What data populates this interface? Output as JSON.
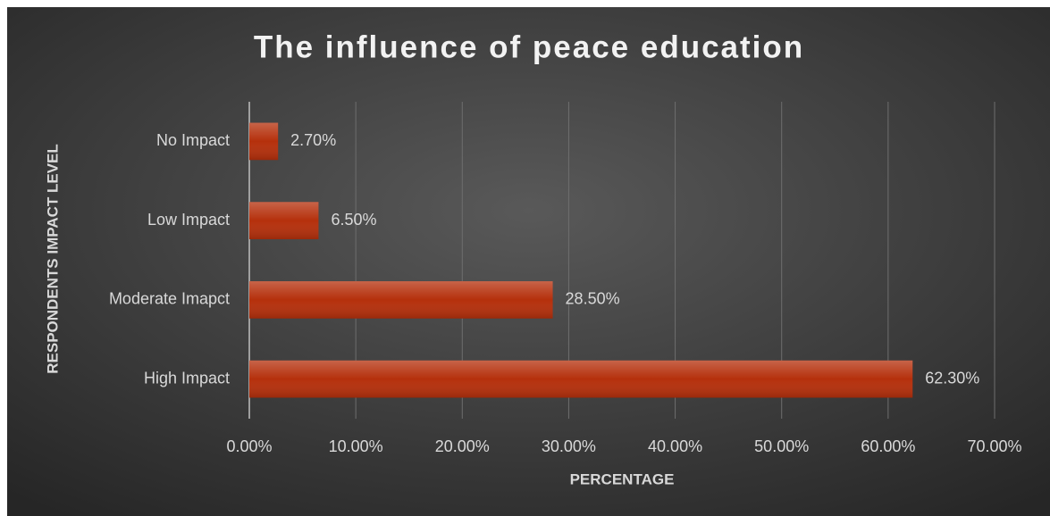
{
  "chart_data": {
    "type": "bar",
    "orientation": "horizontal",
    "title": "The influence of peace education",
    "x_label": "PERCENTAGE",
    "y_label": "RESPONDENTS IMPACT LEVEL",
    "categories": [
      "No Impact",
      "Low Impact",
      "Moderate Imapct",
      "High Impact"
    ],
    "values": [
      2.7,
      6.5,
      28.5,
      62.3
    ],
    "value_labels": [
      "2.70%",
      "6.50%",
      "28.50%",
      "62.30%"
    ],
    "color": "#b5300c",
    "xlim": [
      0,
      70
    ],
    "xticks": [
      {
        "value": 0,
        "label": "0.00%"
      },
      {
        "value": 10,
        "label": "10.00%"
      },
      {
        "value": 20,
        "label": "20.00%"
      },
      {
        "value": 30,
        "label": "30.00%"
      },
      {
        "value": 40,
        "label": "40.00%"
      },
      {
        "value": 50,
        "label": "50.00%"
      },
      {
        "value": 60,
        "label": "60.00%"
      },
      {
        "value": 70,
        "label": "70.00%"
      }
    ],
    "grid": true
  }
}
